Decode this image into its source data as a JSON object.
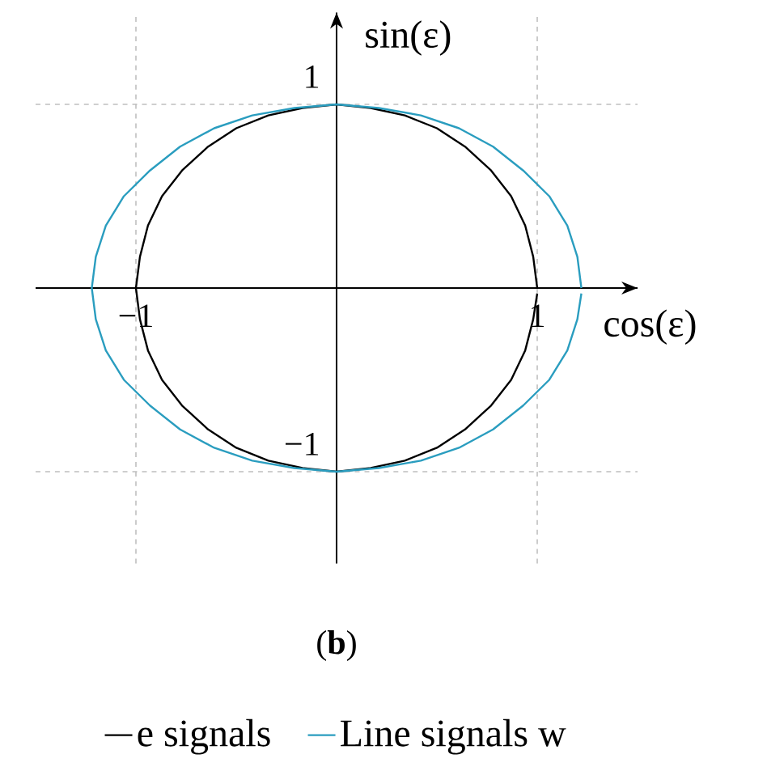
{
  "chart_data": {
    "type": "line",
    "title": "(**b**)",
    "xlabel": "cos(ε)",
    "ylabel": "sin(ε)",
    "xlim": [
      -1.5,
      1.5
    ],
    "ylim": [
      -1.5,
      1.5
    ],
    "xticks": [
      {
        "value": -1,
        "label": "−1"
      },
      {
        "value": 1,
        "label": "1"
      }
    ],
    "yticks": [
      {
        "value": -1,
        "label": "−1"
      },
      {
        "value": 1,
        "label": "1"
      }
    ],
    "grid": true,
    "legend": "bottom",
    "line_style": "solid",
    "marker": "none",
    "series": [
      {
        "name": "e signals",
        "color": "#000000",
        "x": [
          1.0,
          0.98,
          0.94,
          0.87,
          0.77,
          0.64,
          0.5,
          0.34,
          0.17,
          0.0,
          -0.17,
          -0.34,
          -0.5,
          -0.64,
          -0.77,
          -0.87,
          -0.94,
          -0.98,
          -1.0,
          -0.98,
          -0.94,
          -0.87,
          -0.77,
          -0.64,
          -0.5,
          -0.34,
          -0.17,
          0.0,
          0.17,
          0.34,
          0.5,
          0.64,
          0.77,
          0.87,
          0.94,
          0.98,
          1.0
        ],
        "values": [
          0.0,
          0.17,
          0.34,
          0.5,
          0.64,
          0.77,
          0.87,
          0.94,
          0.98,
          1.0,
          0.98,
          0.94,
          0.87,
          0.77,
          0.64,
          0.5,
          0.34,
          0.17,
          0.0,
          -0.17,
          -0.34,
          -0.5,
          -0.64,
          -0.77,
          -0.87,
          -0.94,
          -0.98,
          -1.0,
          -0.98,
          -0.94,
          -0.87,
          -0.77,
          -0.64,
          -0.5,
          -0.34,
          -0.17,
          -0.03
        ]
      },
      {
        "name": "Line signals w",
        "color": "#2a9dbf",
        "x": [
          1.22,
          1.2,
          1.15,
          1.06,
          0.93,
          0.78,
          0.61,
          0.42,
          0.21,
          0.0,
          -0.21,
          -0.42,
          -0.61,
          -0.78,
          -0.93,
          -1.06,
          -1.15,
          -1.2,
          -1.22,
          -1.2,
          -1.15,
          -1.06,
          -0.93,
          -0.78,
          -0.61,
          -0.42,
          -0.21,
          0.0,
          0.21,
          0.42,
          0.61,
          0.78,
          0.93,
          1.06,
          1.15,
          1.2,
          1.22
        ],
        "values": [
          0.0,
          0.17,
          0.34,
          0.5,
          0.64,
          0.77,
          0.87,
          0.94,
          0.98,
          1.0,
          0.98,
          0.94,
          0.87,
          0.77,
          0.64,
          0.5,
          0.34,
          0.17,
          0.0,
          -0.17,
          -0.34,
          -0.5,
          -0.64,
          -0.77,
          -0.87,
          -0.94,
          -0.98,
          -1.0,
          -0.98,
          -0.94,
          -0.87,
          -0.77,
          -0.64,
          -0.5,
          -0.34,
          -0.17,
          -0.03
        ]
      }
    ]
  }
}
